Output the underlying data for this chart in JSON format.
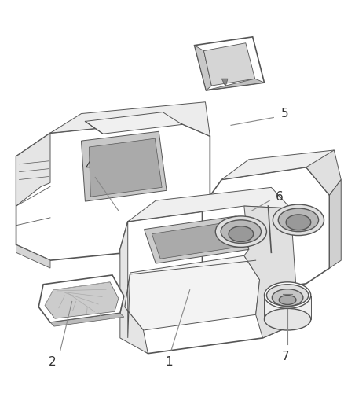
{
  "background_color": "#ffffff",
  "line_color": "#555555",
  "label_color": "#333333",
  "leader_color": "#888888",
  "figsize": [
    4.38,
    5.33
  ],
  "dpi": 100,
  "label_fontsize": 11
}
